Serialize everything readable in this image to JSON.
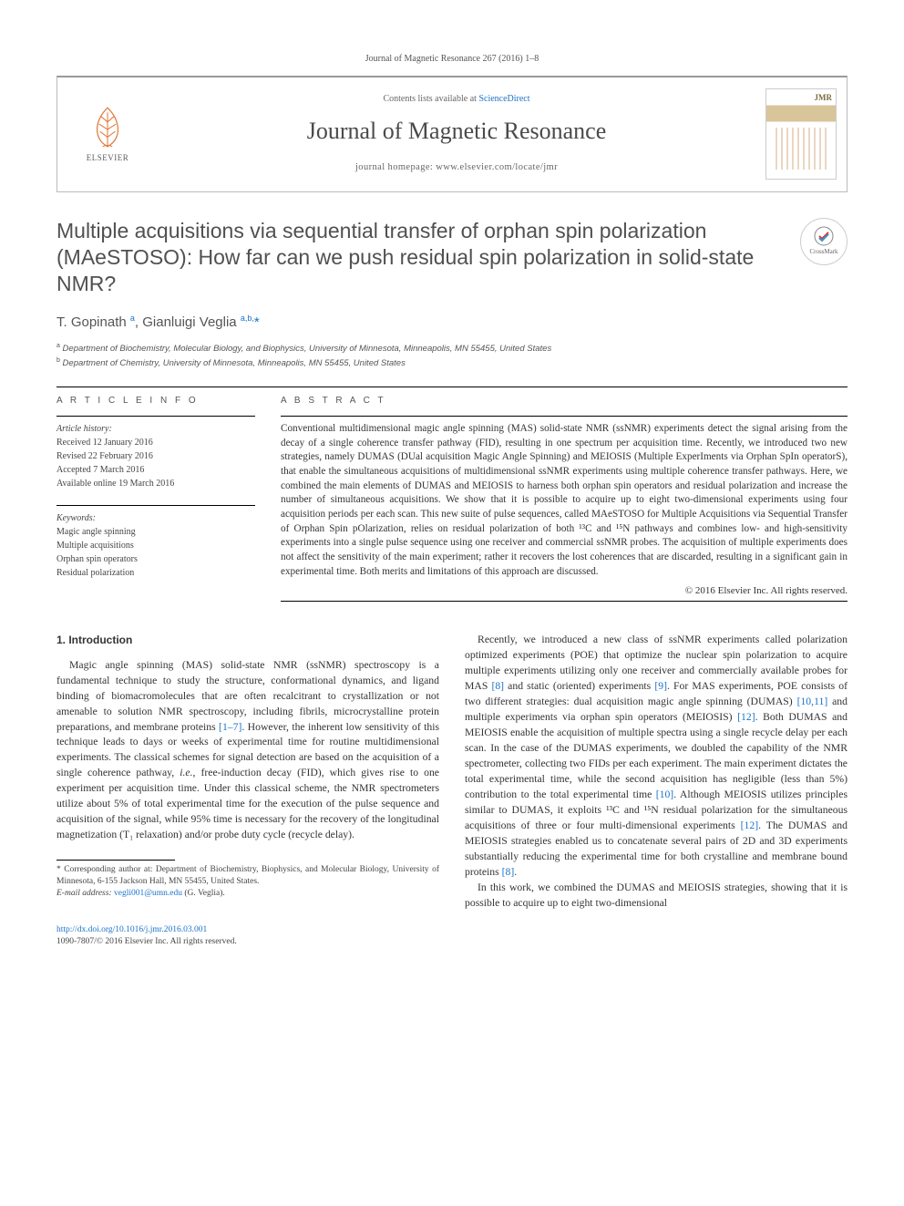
{
  "running_head": "Journal of Magnetic Resonance 267 (2016) 1–8",
  "header": {
    "contents_prefix": "Contents lists available at ",
    "contents_link": "ScienceDirect",
    "journal_name": "Journal of Magnetic Resonance",
    "homepage_prefix": "journal homepage: ",
    "homepage_url": "www.elsevier.com/locate/jmr",
    "elsevier_label": "ELSEVIER"
  },
  "title": "Multiple acquisitions via sequential transfer of orphan spin polarization (MAeSTOSO): How far can we push residual spin polarization in solid-state NMR?",
  "crossmark_label": "CrossMark",
  "authors_html": "T. Gopinath <sup>a</sup>, Gianluigi Veglia <sup>a,b,</sup><span class='star'>*</span>",
  "affiliations": [
    {
      "mark": "a",
      "text": "Department of Biochemistry, Molecular Biology, and Biophysics, University of Minnesota, Minneapolis, MN 55455, United States"
    },
    {
      "mark": "b",
      "text": "Department of Chemistry, University of Minnesota, Minneapolis, MN 55455, United States"
    }
  ],
  "info_head": "A R T I C L E   I N F O",
  "abs_head": "A B S T R A C T",
  "history": {
    "label": "Article history:",
    "received": "Received 12 January 2016",
    "revised": "Revised 22 February 2016",
    "accepted": "Accepted 7 March 2016",
    "online": "Available online 19 March 2016"
  },
  "keywords": {
    "label": "Keywords:",
    "items": [
      "Magic angle spinning",
      "Multiple acquisitions",
      "Orphan spin operators",
      "Residual polarization"
    ]
  },
  "abstract": "Conventional multidimensional magic angle spinning (MAS) solid-state NMR (ssNMR) experiments detect the signal arising from the decay of a single coherence transfer pathway (FID), resulting in one spectrum per acquisition time. Recently, we introduced two new strategies, namely DUMAS (DUal acquisition Magic Angle Spinning) and MEIOSIS (Multiple ExperIments via Orphan SpIn operatorS), that enable the simultaneous acquisitions of multidimensional ssNMR experiments using multiple coherence transfer pathways. Here, we combined the main elements of DUMAS and MEIOSIS to harness both orphan spin operators and residual polarization and increase the number of simultaneous acquisitions. We show that it is possible to acquire up to eight two-dimensional experiments using four acquisition periods per each scan. This new suite of pulse sequences, called MAeSTOSO for Multiple Acquisitions via Sequential Transfer of Orphan Spin pOlarization, relies on residual polarization of both ¹³C and ¹⁵N pathways and combines low- and high-sensitivity experiments into a single pulse sequence using one receiver and commercial ssNMR probes. The acquisition of multiple experiments does not affect the sensitivity of the main experiment; rather it recovers the lost coherences that are discarded, resulting in a significant gain in experimental time. Both merits and limitations of this approach are discussed.",
  "copyright": "© 2016 Elsevier Inc. All rights reserved.",
  "intro_head": "1. Introduction",
  "intro": {
    "p1a": "Magic angle spinning (MAS) solid-state NMR (ssNMR) spectroscopy is a fundamental technique to study the structure, conformational dynamics, and ligand binding of biomacromolecules that are often recalcitrant to crystallization or not amenable to solution NMR spectroscopy, including fibrils, microcrystalline protein preparations, and membrane proteins ",
    "p1_ref1": "[1–7]",
    "p1b": ". However, the inherent low sensitivity of this technique leads to days or weeks of experimental time for routine multidimensional experiments. The classical schemes for signal detection are based on the acquisition of a single coherence pathway, ",
    "p1_ital": "i.e.",
    "p1c": ", free-induction decay (FID), which gives rise to one experiment per acquisition time. Under this classical scheme, the NMR spectrometers utilize about 5% of total experimental time for the execution of the pulse sequence and acquisition of the signal, while 95% time is necessary for the recovery of the longitudinal magnetization (T₁ relaxation) and/or probe duty cycle (recycle delay).",
    "p2a": "Recently, we introduced a new class of ssNMR experiments called polarization optimized experiments (POE) that optimize the nuclear spin polarization to acquire multiple experiments utilizing only one receiver and commercially available probes for MAS ",
    "p2_ref1": "[8]",
    "p2b": " and static (oriented) experiments ",
    "p2_ref2": "[9]",
    "p2c": ". For MAS experiments, POE consists of two different strategies: dual acquisition magic angle spinning (DUMAS) ",
    "p2_ref3": "[10,11]",
    "p2d": " and multiple experiments via orphan spin operators (MEIOSIS) ",
    "p2_ref4": "[12]",
    "p2e": ". Both DUMAS and MEIOSIS enable the acquisition of multiple spectra using a single recycle delay per each scan. In the case of the DUMAS experiments, we doubled the capability of the NMR spectrometer, collecting two FIDs per each experiment. The main experiment dictates the total experimental time, while the second acquisition has negligible (less than 5%) contribution to the total experimental time ",
    "p2_ref5": "[10]",
    "p2f": ". Although MEIOSIS utilizes principles similar to DUMAS, it exploits ¹³C and ¹⁵N residual polarization for the simultaneous acquisitions of three or four multi-dimensional experiments ",
    "p2_ref6": "[12]",
    "p2g": ". The DUMAS and MEIOSIS strategies enabled us to concatenate several pairs of 2D and 3D experiments substantially reducing the experimental time for both crystalline and membrane bound proteins ",
    "p2_ref7": "[8]",
    "p2h": ".",
    "p3": "In this work, we combined the DUMAS and MEIOSIS strategies, showing that it is possible to acquire up to eight two-dimensional"
  },
  "footnotes": {
    "corr": "* Corresponding author at: Department of Biochemistry, Biophysics, and Molecular Biology, University of Minnesota, 6-155 Jackson Hall, MN 55455, United States.",
    "email_lbl": "E-mail address: ",
    "email": "vegli001@umn.edu",
    "email_tail": " (G. Veglia)."
  },
  "doi": {
    "url": "http://dx.doi.org/10.1016/j.jmr.2016.03.001",
    "issn_line": "1090-7807/© 2016 Elsevier Inc. All rights reserved."
  },
  "colors": {
    "link": "#1a73c9",
    "text": "#333333",
    "muted": "#555555",
    "rule": "#000000"
  }
}
